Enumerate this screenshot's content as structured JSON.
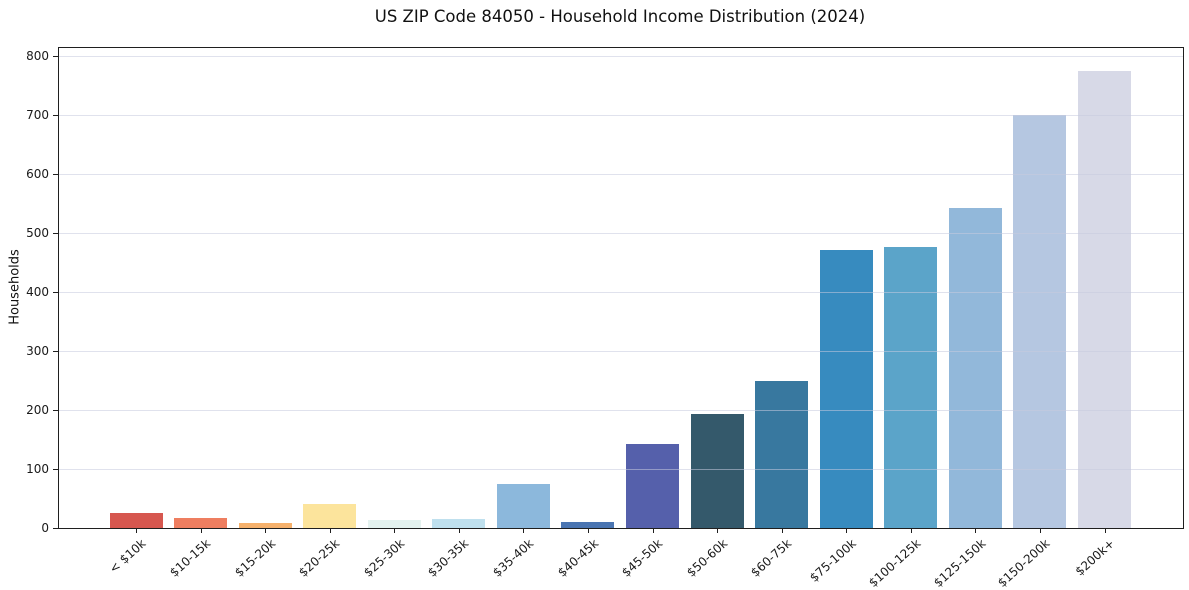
{
  "window": {
    "title": "US ZIP Code 84050 - Household Income Distribution (2024)"
  },
  "chart_data": {
    "type": "bar",
    "title": "US ZIP Code 84050 - Household Income Distribution (2024)",
    "xlabel": "",
    "ylabel": "Households",
    "ylim": [
      0,
      814
    ],
    "yticks": [
      0,
      100,
      200,
      300,
      400,
      500,
      600,
      700,
      800
    ],
    "grid": "horizontal-light",
    "legend_position": "none",
    "categories": [
      "< $10k",
      "$10-15k",
      "$15-20k",
      "$20-25k",
      "$25-30k",
      "$30-35k",
      "$35-40k",
      "$40-45k",
      "$45-50k",
      "$50-60k",
      "$60-75k",
      "$75-100k",
      "$100-125k",
      "$125-150k",
      "$150-200k",
      "$200k+"
    ],
    "values": [
      26,
      17,
      9,
      40,
      13,
      15,
      75,
      10,
      142,
      194,
      250,
      471,
      476,
      542,
      700,
      775
    ],
    "bar_colors": [
      "#d6574f",
      "#ee7e60",
      "#f6b16c",
      "#fce49c",
      "#e4f2ef",
      "#bfe0ee",
      "#8cb8dc",
      "#4a75b2",
      "#5560ab",
      "#34596b",
      "#38789f",
      "#378bbf",
      "#5ba4c9",
      "#92b8da",
      "#b5c7e1",
      "#d7d9e7"
    ],
    "spine_color": "#1f1f1f",
    "background_color": "#ffffff"
  }
}
